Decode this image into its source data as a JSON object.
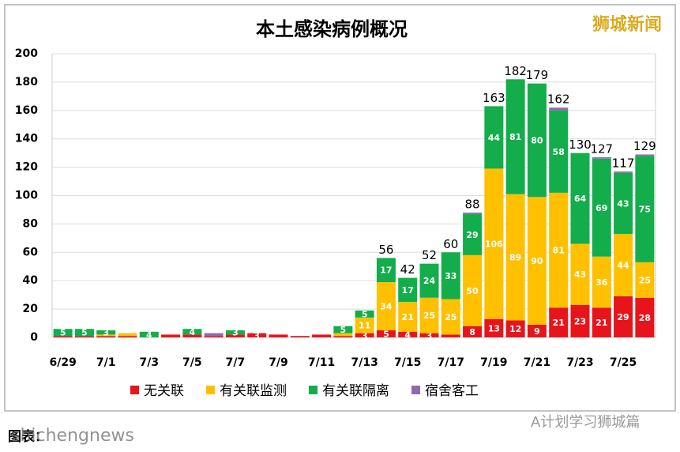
{
  "chart_data": {
    "type": "stacked_bar",
    "title": "本土感染病例概况",
    "watermark": "狮城新闻",
    "footer_left": "图表：",
    "footer_overlay": "shichengnews",
    "footer_right": "A计划学习狮城篇",
    "categories": [
      "6/29",
      null,
      "7/1",
      null,
      "7/3",
      null,
      "7/5",
      null,
      "7/7",
      null,
      "7/9",
      null,
      "7/11",
      null,
      "7/13",
      null,
      "7/15",
      null,
      "7/17",
      null,
      "7/19",
      null,
      "7/21",
      null,
      "7/23",
      null,
      "7/25",
      null
    ],
    "series": [
      {
        "name": "无关联",
        "color": "#e8141b",
        "values": [
          1,
          1,
          1,
          1,
          0,
          2,
          2,
          1,
          2,
          3,
          2,
          1,
          2,
          1,
          3,
          5,
          4,
          3,
          2,
          8,
          13,
          12,
          9,
          21,
          23,
          21,
          29,
          28
        ]
      },
      {
        "name": "有关联监测",
        "color": "#ffc000",
        "values": [
          0,
          0,
          1,
          2,
          0,
          0,
          0,
          0,
          0,
          0,
          0,
          0,
          0,
          2,
          11,
          34,
          21,
          25,
          25,
          50,
          106,
          89,
          90,
          81,
          43,
          36,
          44,
          25
        ]
      },
      {
        "name": "有关联隔离",
        "color": "#13ad4b",
        "values": [
          5,
          5,
          3,
          0,
          4,
          0,
          4,
          0,
          3,
          0,
          0,
          0,
          0,
          5,
          5,
          17,
          17,
          24,
          33,
          29,
          44,
          81,
          80,
          58,
          64,
          69,
          43,
          75
        ]
      },
      {
        "name": "宿舍客工",
        "color": "#8e6bb0",
        "values": [
          0,
          0,
          0,
          0,
          0,
          0,
          0,
          2,
          0,
          0,
          0,
          0,
          0,
          0,
          0,
          0,
          0,
          0,
          0,
          1,
          0,
          0,
          0,
          2,
          0,
          1,
          1,
          1
        ]
      }
    ],
    "totals": [
      null,
      null,
      null,
      null,
      null,
      null,
      null,
      null,
      null,
      null,
      null,
      null,
      null,
      null,
      null,
      56,
      42,
      52,
      60,
      88,
      163,
      182,
      179,
      162,
      130,
      127,
      117,
      129
    ],
    "ylim": [
      0,
      200
    ],
    "yticks": [
      0,
      20,
      40,
      60,
      80,
      100,
      120,
      140,
      160,
      180,
      200
    ],
    "grid": true,
    "legend": "bottom"
  }
}
